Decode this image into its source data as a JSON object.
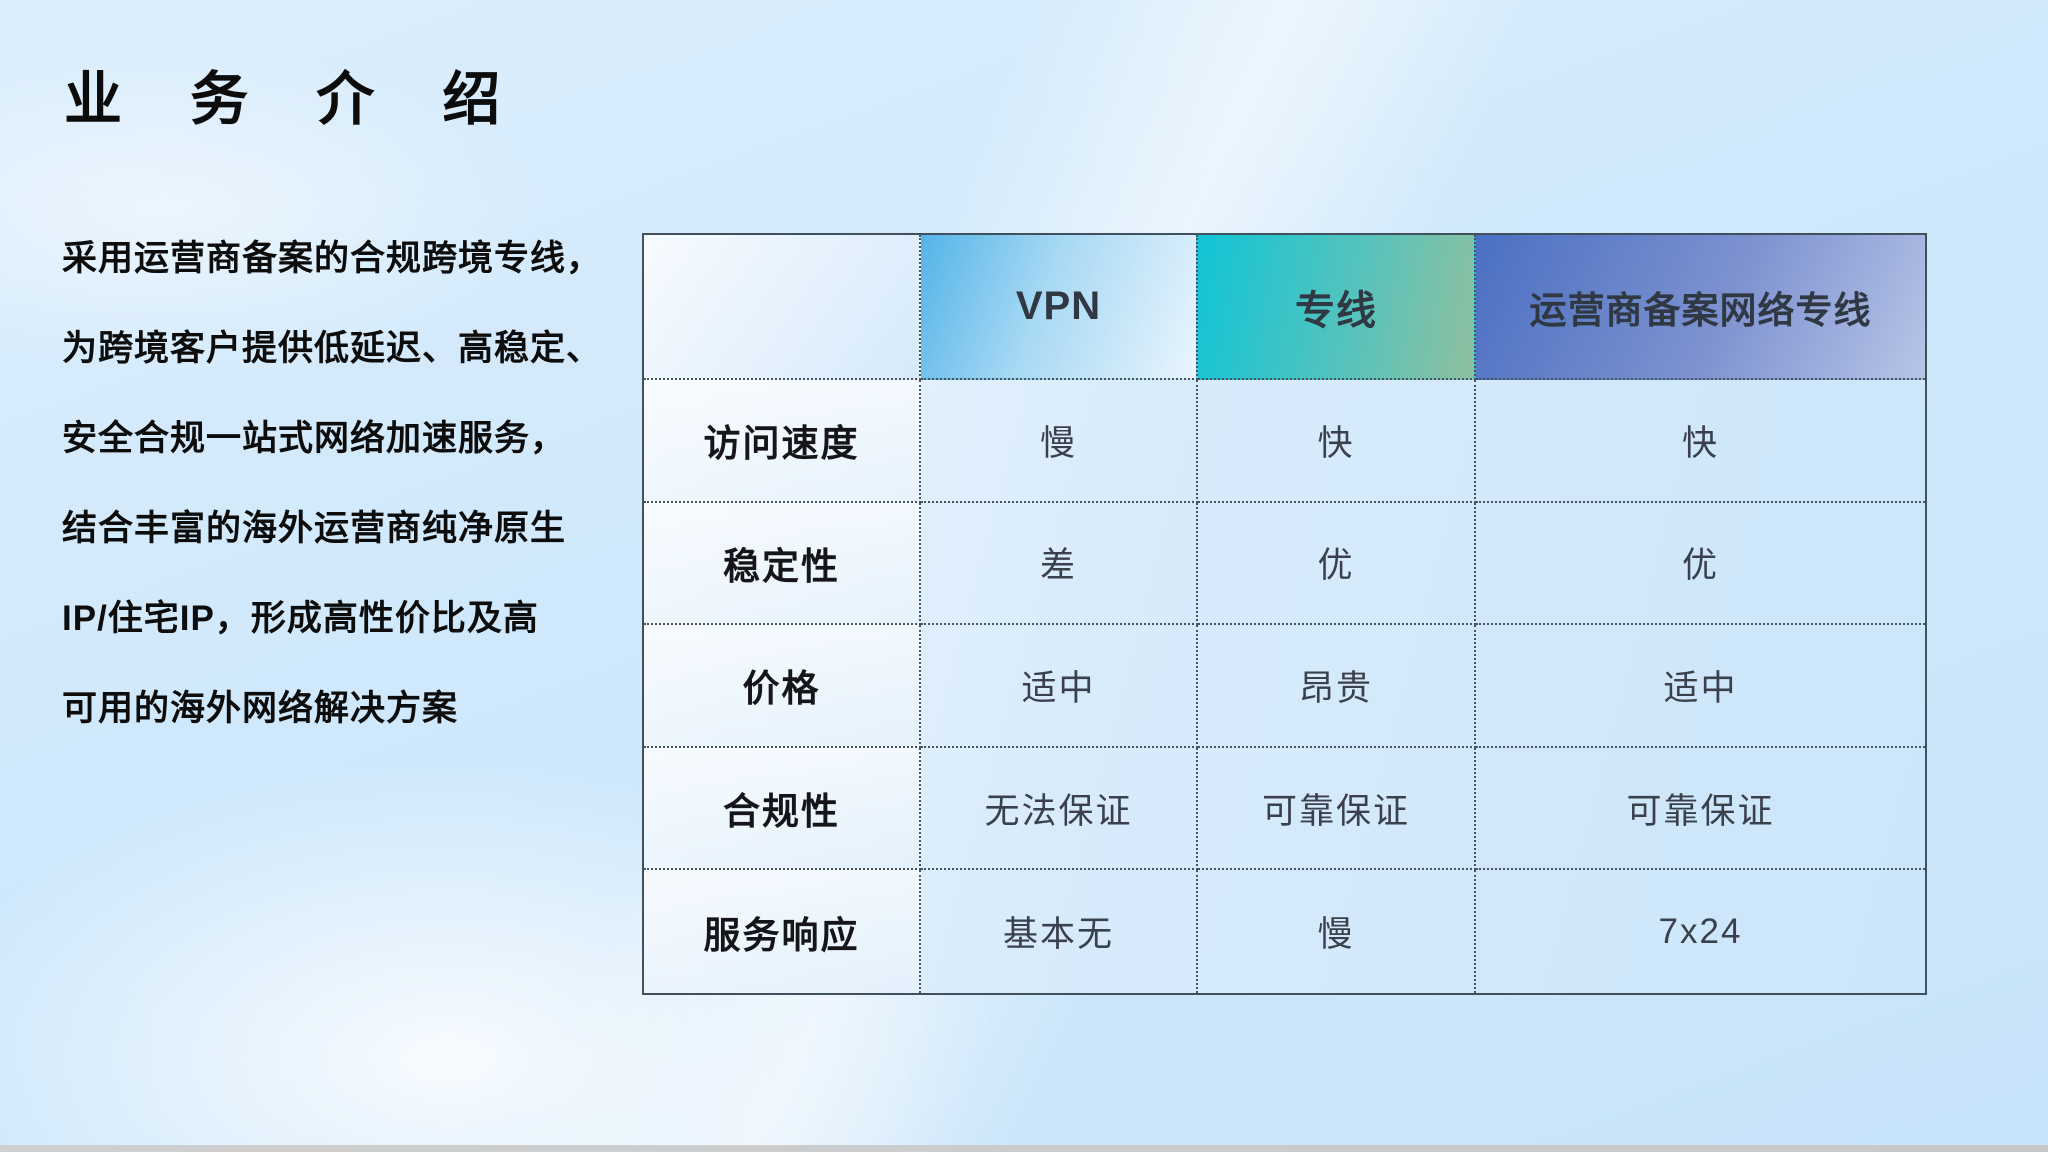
{
  "slide": {
    "title": "业 务 介 绍",
    "description_lines": [
      "采用运营商备案的合规跨境专线，",
      "为跨境客户提供低延迟、高稳定、",
      "安全合规一站式网络加速服务，",
      "结合丰富的海外运营商纯净原生",
      "IP/住宅IP，形成高性价比及高",
      "可用的海外网络解决方案"
    ]
  },
  "table": {
    "columns": [
      {
        "label": "",
        "gradient": [
          "#f7fbfe",
          "#d5eafb"
        ]
      },
      {
        "label": "VPN",
        "gradient": [
          "#54b4e8",
          "#e9f5fd"
        ]
      },
      {
        "label": "专线",
        "gradient": [
          "#11c4d6",
          "#8fc09f"
        ]
      },
      {
        "label": "运营商备案网络专线",
        "gradient": [
          "#4a70c2",
          "#b7c5e7"
        ]
      }
    ],
    "rows": [
      {
        "label": "访问速度",
        "values": [
          "慢",
          "快",
          "快"
        ]
      },
      {
        "label": "稳定性",
        "values": [
          "差",
          "优",
          "优"
        ]
      },
      {
        "label": "价格",
        "values": [
          "适中",
          "昂贵",
          "适中"
        ]
      },
      {
        "label": "合规性",
        "values": [
          "无法保证",
          "可靠保证",
          "可靠保证"
        ]
      },
      {
        "label": "服务响应",
        "values": [
          "基本无",
          "慢",
          "7x24"
        ]
      }
    ]
  },
  "colors": {
    "background": "#cfe8fb",
    "table_border": "#41505d",
    "title_text": "#0c0c0c",
    "value_text": "#3a414c",
    "bottom_bar": "#c9c9c9"
  }
}
